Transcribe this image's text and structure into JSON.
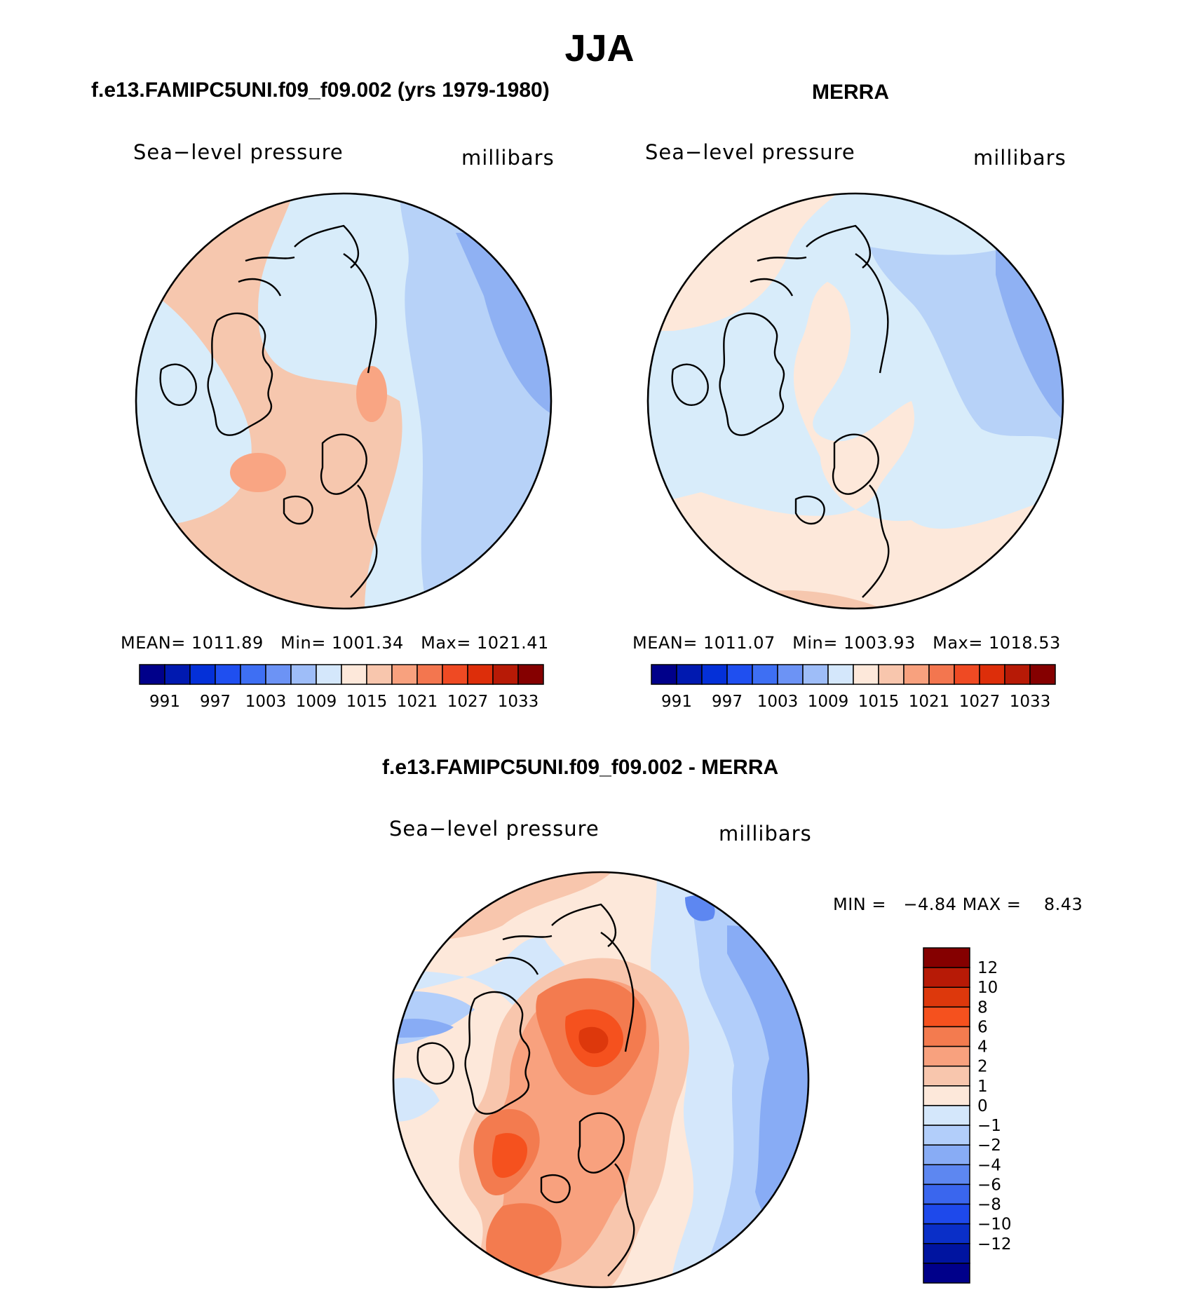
{
  "title": "JJA",
  "panels": [
    {
      "heading": "f.e13.FAMIPC5UNI.f09_f09.002 (yrs 1979-1980)",
      "field_label": "Sea−level pressure",
      "units": "millibars",
      "stats": {
        "mean_label": "MEAN=",
        "mean": "1011.89",
        "min_label": "Min=",
        "min": "1001.34",
        "max_label": "Max=",
        "max": "1021.41"
      },
      "palette": [
        "#f6c7ae",
        "#f9a583",
        "#d8ecfa",
        "#b7d2f8",
        "#8fb1f3"
      ]
    },
    {
      "heading": "MERRA",
      "field_label": "Sea−level pressure",
      "units": "millibars",
      "stats": {
        "mean_label": "MEAN=",
        "mean": "1011.07",
        "min_label": "Min=",
        "min": "1003.93",
        "max_label": "Max=",
        "max": "1018.53"
      },
      "palette": [
        "#fde8da",
        "#f6c7ae",
        "#d8ecfa",
        "#b7d2f8",
        "#8fb1f3"
      ]
    },
    {
      "heading": "f.e13.FAMIPC5UNI.f09_f09.002 - MERRA",
      "field_label": "Sea−level pressure",
      "units": "millibars",
      "stats": {
        "min_label": "MIN =",
        "min": "−4.84",
        "max_label": "MAX =",
        "max": "8.43"
      }
    }
  ],
  "abs_colorbar": {
    "colors": [
      "#00008a",
      "#0019b0",
      "#0430d8",
      "#1f4ff0",
      "#3e6ff3",
      "#6c93f5",
      "#9ebdf8",
      "#d4e7fb",
      "#fde8da",
      "#f8c6ad",
      "#f8a17e",
      "#f3764f",
      "#ef4a23",
      "#dd2e0a",
      "#b71a06",
      "#850000"
    ],
    "labels": [
      "991",
      "997",
      "1003",
      "1009",
      "1015",
      "1021",
      "1027",
      "1033"
    ]
  },
  "diff_colorbar": {
    "colors": [
      "#850000",
      "#b71a06",
      "#dd380c",
      "#f5511e",
      "#f37b4f",
      "#f8a17e",
      "#f8c6ad",
      "#fde8da",
      "#d4e7fb",
      "#b2cefa",
      "#88acf5",
      "#5d87f1",
      "#3a66ee",
      "#1e49eb",
      "#0a2fc8",
      "#0014a0",
      "#00008a"
    ],
    "labels": [
      "12",
      "10",
      "8",
      "6",
      "4",
      "2",
      "1",
      "0",
      "−1",
      "−2",
      "−4",
      "−6",
      "−8",
      "−10",
      "−12"
    ]
  }
}
